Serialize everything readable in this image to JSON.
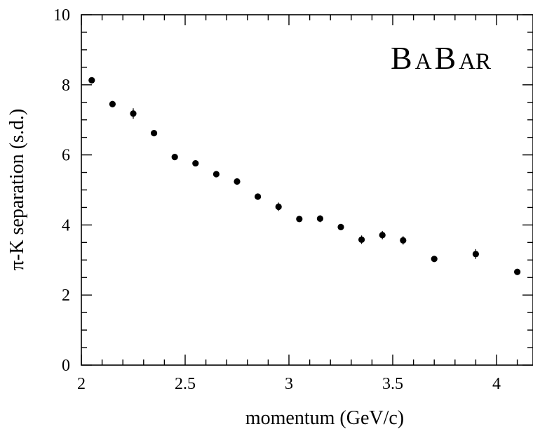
{
  "chart_data": {
    "type": "scatter",
    "title": "",
    "xlabel": "momentum (GeV/c)",
    "ylabel": "π-K separation (s.d.)",
    "xlim": [
      2.0,
      4.15
    ],
    "ylim": [
      0,
      10
    ],
    "x_ticks": [
      2,
      2.5,
      3,
      3.5,
      4
    ],
    "x_tick_labels": [
      "2",
      "2.5",
      "3",
      "3.5",
      "4"
    ],
    "y_ticks": [
      0,
      2,
      4,
      6,
      8,
      10
    ],
    "y_tick_labels": [
      "0",
      "2",
      "4",
      "6",
      "8",
      "10"
    ],
    "grid": false,
    "legend": "none",
    "logo": {
      "parts": [
        "B",
        "A",
        "B",
        "AR"
      ]
    },
    "marker_color": "#000000",
    "series": [
      {
        "x": [
          2.05,
          2.15,
          2.25,
          2.35,
          2.45,
          2.55,
          2.65,
          2.75,
          2.85,
          2.95,
          3.05,
          3.15,
          3.25,
          3.35,
          3.45,
          3.55,
          3.7,
          3.9,
          4.1
        ],
        "y": [
          8.13,
          7.45,
          7.18,
          6.62,
          5.94,
          5.76,
          5.45,
          5.24,
          4.81,
          4.52,
          4.17,
          4.18,
          3.94,
          3.58,
          3.71,
          3.56,
          3.03,
          3.17,
          2.66
        ],
        "yerr": [
          0.05,
          0.05,
          0.15,
          0.05,
          0.05,
          0.05,
          0.05,
          0.05,
          0.05,
          0.12,
          0.05,
          0.1,
          0.05,
          0.12,
          0.12,
          0.12,
          0.05,
          0.14,
          0.05
        ]
      }
    ]
  }
}
